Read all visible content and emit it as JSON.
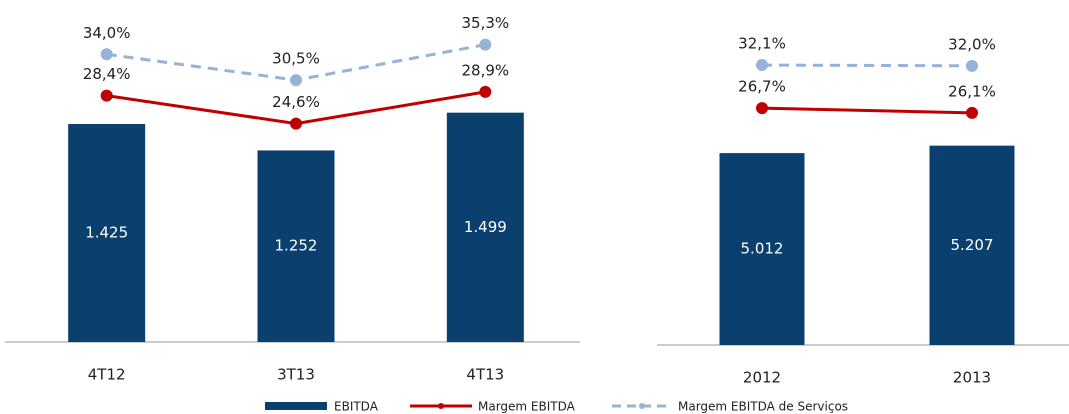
{
  "chart_data": [
    {
      "type": "bar",
      "categories": [
        "4T12",
        "3T13",
        "4T13"
      ],
      "ylim": [
        0,
        2170
      ],
      "y2lim": [
        -5,
        40
      ],
      "series": [
        {
          "name": "EBITDA",
          "color": "#0b406e",
          "values": [
            1425,
            1252,
            1499
          ],
          "value_labels": [
            "1.425",
            "1.252",
            "1.499"
          ]
        },
        {
          "name": "Margem EBITDA",
          "color": "#c00000",
          "axis": "y2",
          "style": "solid",
          "values": [
            28.4,
            24.6,
            28.9
          ],
          "value_labels": [
            "28,4%",
            "24,6%",
            "28,9%"
          ]
        },
        {
          "name": "Margem EBITDA de Serviços",
          "color": "#95b3d7",
          "axis": "y2",
          "style": "dashed",
          "values": [
            34.0,
            30.5,
            35.3
          ],
          "value_labels": [
            "34,0%",
            "30,5%",
            "35,3%"
          ]
        }
      ]
    },
    {
      "type": "bar",
      "categories": [
        "2012",
        "2013"
      ],
      "ylim": [
        0,
        8750
      ],
      "y2lim": [
        -3,
        39
      ],
      "series": [
        {
          "name": "EBITDA",
          "color": "#0b406e",
          "values": [
            5012,
            5207
          ],
          "value_labels": [
            "5.012",
            "5.207"
          ]
        },
        {
          "name": "Margem EBITDA",
          "color": "#c00000",
          "axis": "y2",
          "style": "solid",
          "values": [
            26.7,
            26.1
          ],
          "value_labels": [
            "26,7%",
            "26,1%"
          ]
        },
        {
          "name": "Margem EBITDA de Serviços",
          "color": "#95b3d7",
          "axis": "y2",
          "style": "dashed",
          "values": [
            32.1,
            32.0
          ],
          "value_labels": [
            "32,1%",
            "32,0%"
          ]
        }
      ]
    }
  ]
}
